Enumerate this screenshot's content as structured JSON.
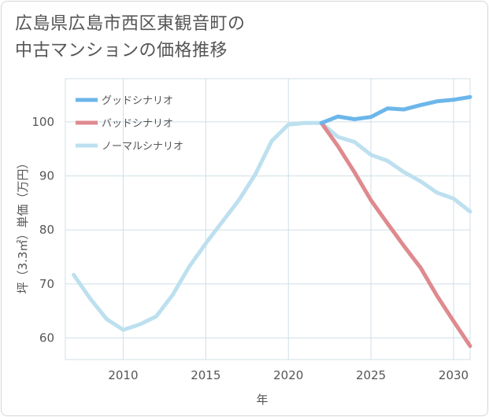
{
  "title_lines": [
    "広島県広島市西区東観音町の",
    "中古マンションの価格推移"
  ],
  "chart_data": {
    "type": "line",
    "title": "広島県広島市西区東観音町の中古マンションの価格推移",
    "xlabel": "年",
    "ylabel": "坪（3.3㎡）単価（万円）",
    "xlim": [
      2006.5,
      2031
    ],
    "ylim": [
      56,
      108
    ],
    "x_ticks": [
      2010,
      2015,
      2020,
      2025,
      2030
    ],
    "y_ticks": [
      60,
      70,
      80,
      90,
      100
    ],
    "grid": true,
    "legend_position": "top-left",
    "series": [
      {
        "name": "グッドシナリオ",
        "color": "#6cb6ea",
        "x": [
          2022,
          2023,
          2024,
          2025,
          2026,
          2027,
          2028,
          2029,
          2030,
          2031
        ],
        "values": [
          99.8,
          101.0,
          100.5,
          100.9,
          102.5,
          102.3,
          103.1,
          103.8,
          104.1,
          104.6
        ]
      },
      {
        "name": "バッドシナリオ",
        "color": "#de8a8f",
        "x": [
          2022,
          2023,
          2024,
          2025,
          2026,
          2027,
          2028,
          2029,
          2030,
          2031
        ],
        "values": [
          99.8,
          95.5,
          90.7,
          85.5,
          81.2,
          77.0,
          73.0,
          67.8,
          63.1,
          58.5
        ]
      },
      {
        "name": "ノーマルシナリオ",
        "color": "#bde0ef",
        "x": [
          2007,
          2008,
          2009,
          2010,
          2011,
          2012,
          2013,
          2014,
          2015,
          2016,
          2017,
          2018,
          2019,
          2020,
          2021,
          2022,
          2023,
          2024,
          2025,
          2026,
          2027,
          2028,
          2029,
          2030,
          2031
        ],
        "values": [
          71.7,
          67.3,
          63.5,
          61.5,
          62.5,
          64.0,
          68.0,
          73.2,
          77.5,
          81.5,
          85.5,
          90.3,
          96.5,
          99.5,
          99.8,
          99.8,
          97.2,
          96.3,
          93.9,
          92.8,
          90.7,
          89.0,
          86.9,
          85.8,
          83.4
        ]
      }
    ]
  }
}
